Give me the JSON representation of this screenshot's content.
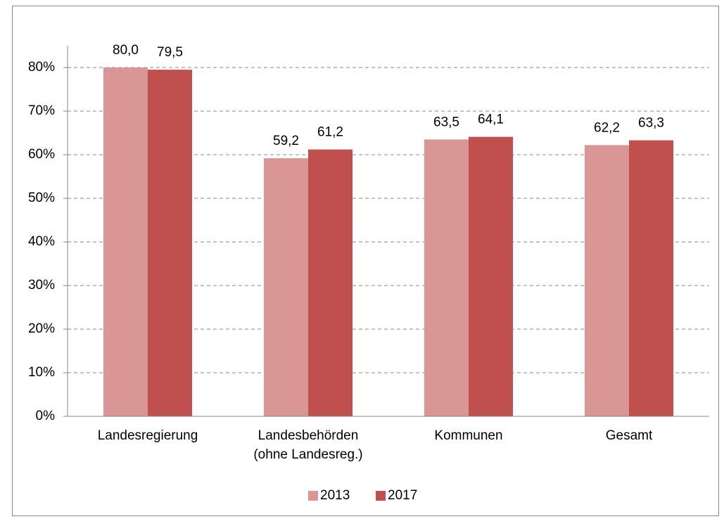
{
  "chart_data": {
    "type": "bar",
    "categories": [
      "Landesregierung",
      "Landesbehörden\n(ohne Landesreg.)",
      "Kommunen",
      "Gesamt"
    ],
    "series": [
      {
        "name": "2013",
        "color": "#d99694",
        "values": [
          80.0,
          59.2,
          63.5,
          62.2
        ],
        "value_labels": [
          "80,0",
          "59,2",
          "63,5",
          "62,2"
        ]
      },
      {
        "name": "2017",
        "color": "#c0504d",
        "values": [
          79.5,
          61.2,
          64.1,
          63.3
        ],
        "value_labels": [
          "79,5",
          "61,2",
          "64,1",
          "63,3"
        ]
      }
    ],
    "ylim": [
      0,
      85
    ],
    "yticks": [
      {
        "value": 0,
        "label": "0%"
      },
      {
        "value": 10,
        "label": "10%"
      },
      {
        "value": 20,
        "label": "20%"
      },
      {
        "value": 30,
        "label": "30%"
      },
      {
        "value": 40,
        "label": "40%"
      },
      {
        "value": 50,
        "label": "50%"
      },
      {
        "value": 60,
        "label": "60%"
      },
      {
        "value": 70,
        "label": "70%"
      },
      {
        "value": 80,
        "label": "80%"
      }
    ],
    "grid": true,
    "legend": "bottom"
  }
}
